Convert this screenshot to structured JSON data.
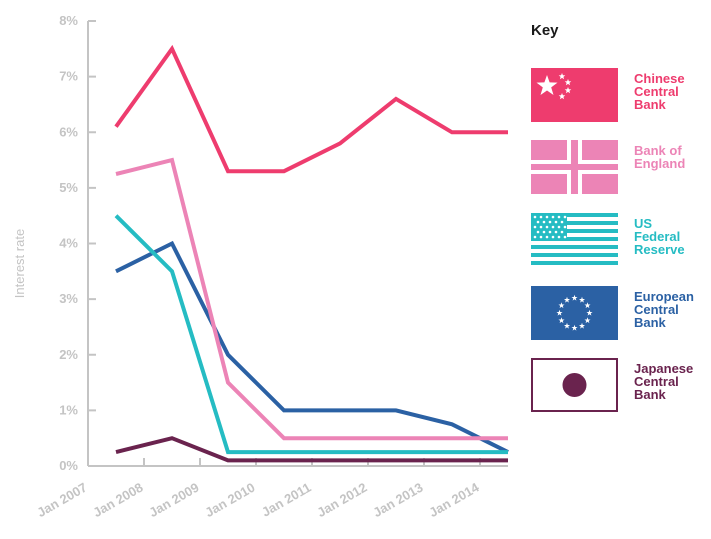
{
  "chart_data": {
    "type": "line",
    "ylabel": "Interest rate",
    "ylim": [
      0,
      8
    ],
    "y_ticks": [
      "0%",
      "1%",
      "2%",
      "3%",
      "4%",
      "5%",
      "6%",
      "7%",
      "8%"
    ],
    "x_tick_labels": [
      "Jan 2007",
      "Jan 2008",
      "Jan 2009",
      "Jan 2010",
      "Jan 2011",
      "Jan 2012",
      "Jan 2013",
      "Jan 2014"
    ],
    "x": [
      2007.5,
      2008.5,
      2009.5,
      2010.5,
      2011.5,
      2012.5,
      2013.5,
      2014.5
    ],
    "grid": false,
    "legend_title": "Key",
    "legend_position": "right",
    "series": [
      {
        "name": "Chinese Central Bank",
        "color": "#ee3c6e",
        "flag": "china",
        "points": [
          [
            2007.5,
            6.1
          ],
          [
            2008.5,
            7.5
          ],
          [
            2009.5,
            5.3
          ],
          [
            2010.5,
            5.3
          ],
          [
            2011.5,
            5.8
          ],
          [
            2012.5,
            6.6
          ],
          [
            2013.5,
            6.0
          ],
          [
            2014.5,
            6.0
          ]
        ]
      },
      {
        "name": "Bank of England",
        "color": "#ec84b6",
        "flag": "uk",
        "points": [
          [
            2007.5,
            5.25
          ],
          [
            2008.5,
            5.5
          ],
          [
            2009.5,
            1.5
          ],
          [
            2010.5,
            0.5
          ],
          [
            2011.5,
            0.5
          ],
          [
            2012.5,
            0.5
          ],
          [
            2013.5,
            0.5
          ],
          [
            2014.5,
            0.5
          ]
        ]
      },
      {
        "name": "US Federal Reserve",
        "color": "#25bcc3",
        "flag": "us",
        "points": [
          [
            2007.5,
            4.5
          ],
          [
            2008.5,
            3.5
          ],
          [
            2009.5,
            0.25
          ],
          [
            2010.5,
            0.25
          ],
          [
            2011.5,
            0.25
          ],
          [
            2012.5,
            0.25
          ],
          [
            2013.5,
            0.25
          ],
          [
            2014.5,
            0.25
          ]
        ]
      },
      {
        "name": "European Central Bank",
        "color": "#2b61a4",
        "flag": "eu",
        "points": [
          [
            2007.5,
            3.5
          ],
          [
            2008.5,
            4.0
          ],
          [
            2009.5,
            2.0
          ],
          [
            2010.5,
            1.0
          ],
          [
            2011.5,
            1.0
          ],
          [
            2012.5,
            1.0
          ],
          [
            2013.5,
            0.75
          ],
          [
            2014.5,
            0.25
          ]
        ]
      },
      {
        "name": "Japanese Central Bank",
        "color": "#6a234e",
        "flag": "japan",
        "points": [
          [
            2007.5,
            0.25
          ],
          [
            2008.5,
            0.5
          ],
          [
            2009.5,
            0.1
          ],
          [
            2010.5,
            0.1
          ],
          [
            2011.5,
            0.1
          ],
          [
            2012.5,
            0.1
          ],
          [
            2013.5,
            0.1
          ],
          [
            2014.5,
            0.1
          ]
        ]
      }
    ]
  },
  "legend": {
    "title": "Key",
    "items": [
      {
        "label": "Chinese\nCentral\nBank",
        "color": "#ee3c6e",
        "flag": "china"
      },
      {
        "label": "Bank of\nEngland",
        "color": "#ec84b6",
        "flag": "uk"
      },
      {
        "label": "US\nFederal\nReserve",
        "color": "#25bcc3",
        "flag": "us"
      },
      {
        "label": "European\nCentral\nBank",
        "color": "#2b61a4",
        "flag": "eu"
      },
      {
        "label": "Japanese\nCentral\nBank",
        "color": "#6a234e",
        "flag": "japan"
      }
    ]
  }
}
